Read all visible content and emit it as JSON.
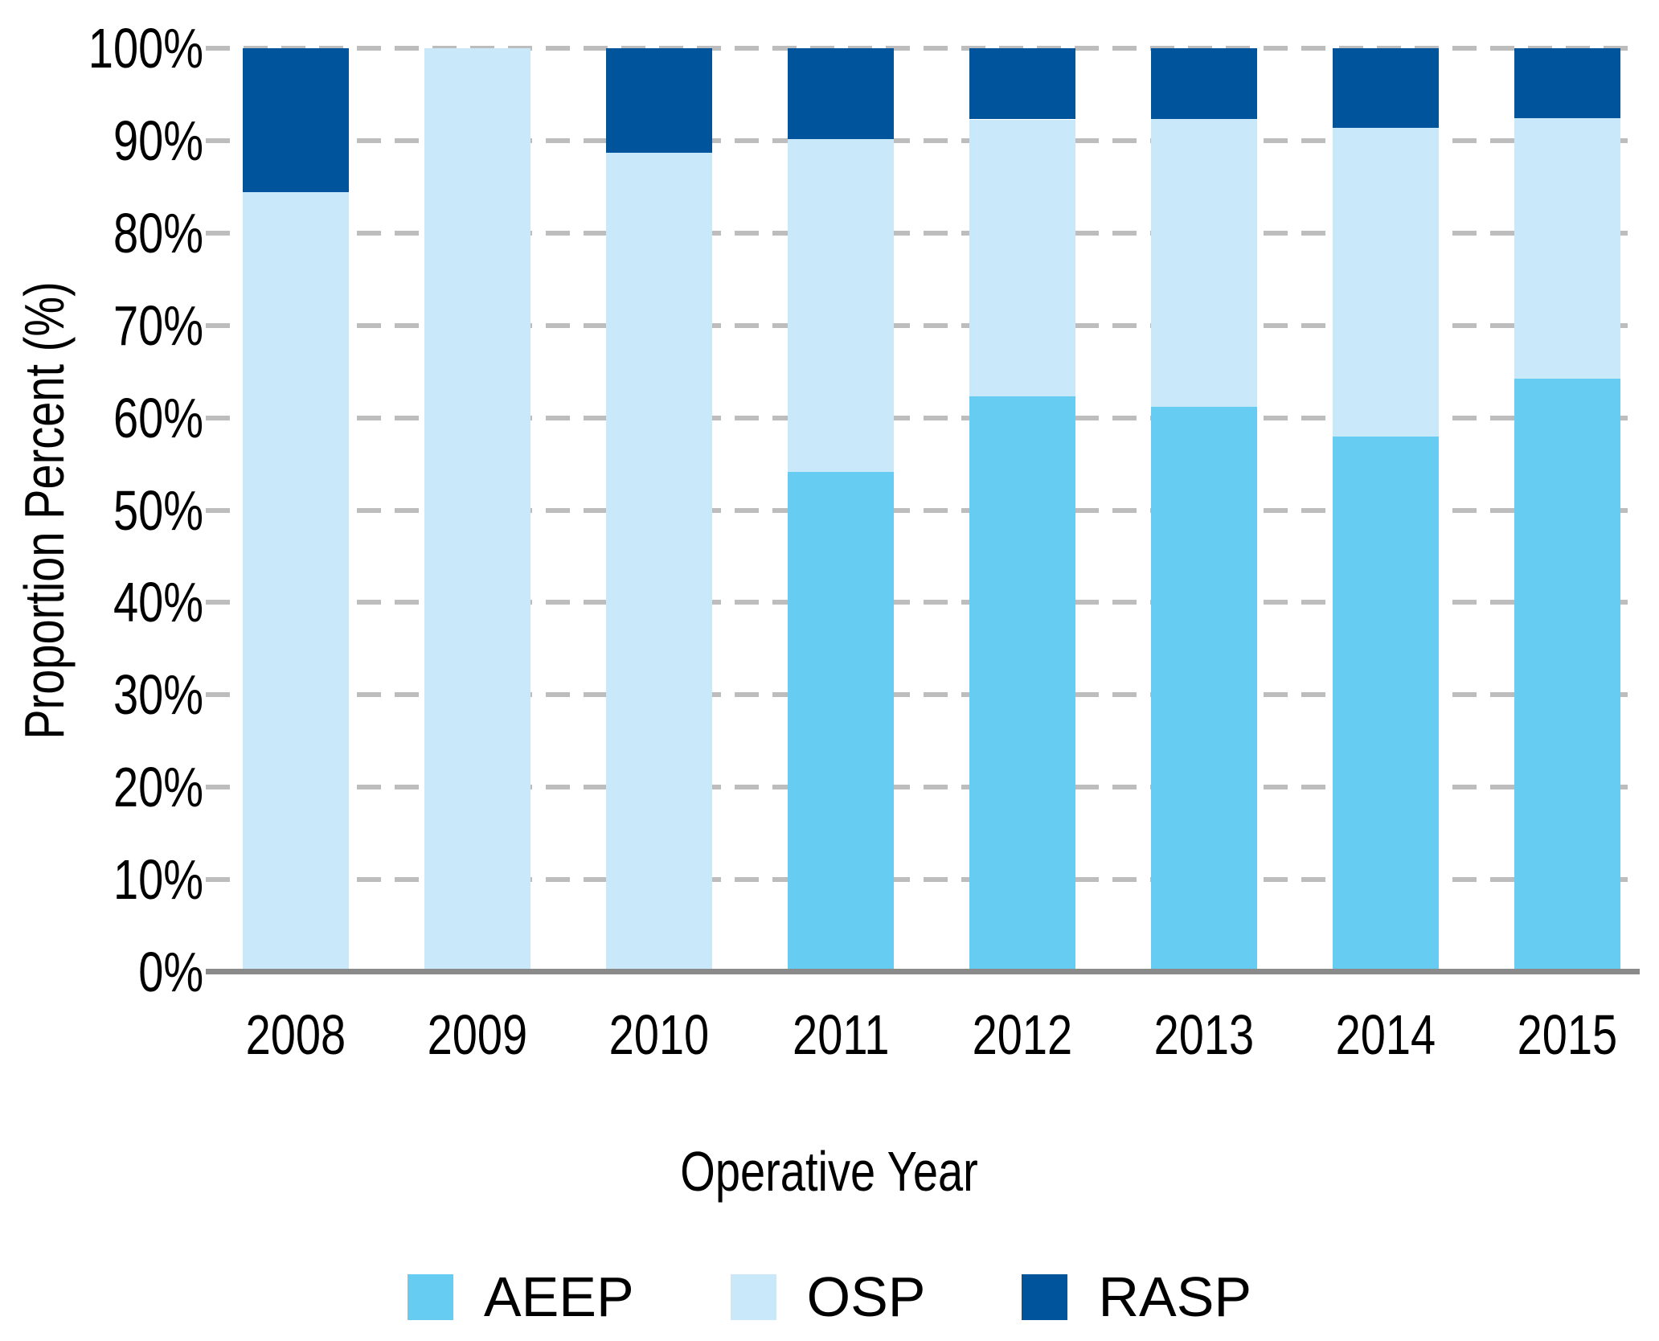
{
  "chart_data": {
    "type": "bar",
    "stacked": true,
    "title": "",
    "xlabel": "Operative Year",
    "ylabel": "Proportion Percent (%)",
    "categories": [
      "2008",
      "2009",
      "2010",
      "2011",
      "2012",
      "2013",
      "2014",
      "2015"
    ],
    "series": [
      {
        "name": "AEEP",
        "color": "#66ccf2",
        "values": [
          0,
          0,
          0,
          54.1,
          62.3,
          61.2,
          58.0,
          64.2
        ]
      },
      {
        "name": "OSP",
        "color": "#c9e8f9",
        "values": [
          84.4,
          100,
          88.7,
          36.1,
          30.0,
          31.1,
          33.4,
          28.2
        ]
      },
      {
        "name": "RASP",
        "color": "#00549b",
        "values": [
          15.6,
          0,
          11.3,
          9.8,
          7.7,
          7.7,
          8.6,
          7.6
        ]
      }
    ],
    "ylim": [
      0,
      100
    ],
    "ytick_labels": [
      "0%",
      "10%",
      "20%",
      "30%",
      "40%",
      "50%",
      "60%",
      "70%",
      "80%",
      "90%",
      "100%"
    ],
    "grid": "horizontal-dashed",
    "gridline_color": "#bdbdbd",
    "axis_line_color": "#8a8a8a",
    "legend_position": "bottom"
  }
}
